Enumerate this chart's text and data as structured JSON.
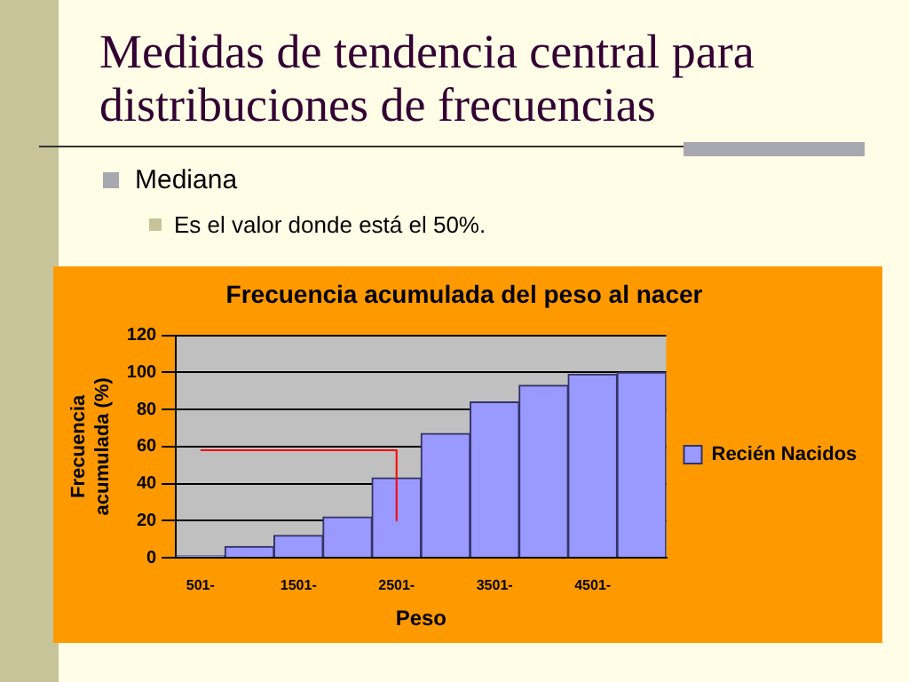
{
  "chart_data": {
    "type": "bar",
    "title": "Frecuencia acumulada del peso al nacer",
    "xlabel": "Peso",
    "ylabel": "Frecuencia acumulada (%)",
    "annotations": [
      "Medidas de tendencia central para distribuciones de frecuencias",
      "Mediana",
      "Es el valor donde está el 50%."
    ],
    "categories": [
      "501-",
      null,
      "1501-",
      null,
      "2501-",
      null,
      "3501-",
      null,
      "4501-",
      null
    ],
    "series": [
      {
        "name": "Recién Nacidos",
        "color": "#9999ff",
        "values": [
          1,
          6,
          12,
          22,
          43,
          67,
          84,
          93,
          99,
          100
        ]
      },
      {
        "type": "line",
        "color": "#ff0000",
        "x": [
          "501-",
          "2501-",
          "2501-"
        ],
        "values": [
          58,
          58,
          20
        ],
        "marker": "none"
      }
    ],
    "ylim": [
      0,
      120
    ],
    "yticks": [
      0,
      20,
      40,
      60,
      80,
      100,
      120
    ],
    "grid": "y",
    "legend": "right"
  }
}
